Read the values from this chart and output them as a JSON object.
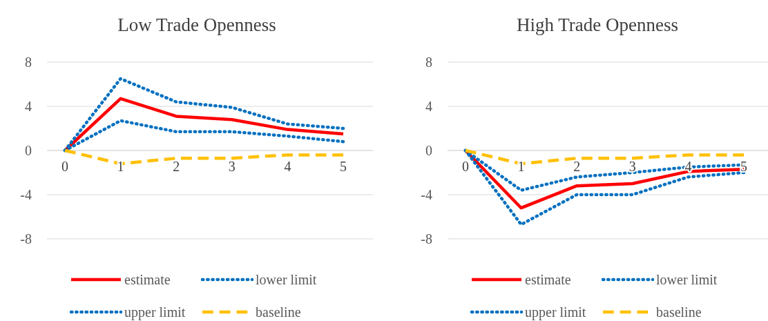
{
  "chart_data": [
    {
      "type": "line",
      "title": "Low Trade Openness",
      "categories": [
        "0",
        "1",
        "2",
        "3",
        "4",
        "5"
      ],
      "ylim": [
        -8,
        8
      ],
      "yticks": [
        -8,
        -4,
        0,
        4,
        8
      ],
      "grid": "y",
      "legend": "bottom",
      "marker": "none",
      "series": [
        {
          "name": "estimate",
          "color": "#ff0000",
          "line_style": "solid",
          "values": [
            0,
            4.7,
            3.1,
            2.8,
            1.9,
            1.5
          ]
        },
        {
          "name": "lower limit",
          "color": "#0070c0",
          "line_style": "dotted",
          "values": [
            0,
            2.7,
            1.7,
            1.7,
            1.3,
            0.8
          ]
        },
        {
          "name": "upper limit",
          "color": "#0070c0",
          "line_style": "dotted",
          "values": [
            0,
            6.5,
            4.4,
            3.9,
            2.4,
            2.0
          ]
        },
        {
          "name": "baseline",
          "color": "#ffc000",
          "line_style": "dashed",
          "values": [
            0,
            -1.2,
            -0.7,
            -0.7,
            -0.4,
            -0.4
          ]
        }
      ]
    },
    {
      "type": "line",
      "title": "High Trade Openness",
      "categories": [
        "0",
        "1",
        "2",
        "3",
        "4",
        "5"
      ],
      "ylim": [
        -8,
        8
      ],
      "yticks": [
        -8,
        -4,
        0,
        4,
        8
      ],
      "grid": "y",
      "legend": "bottom",
      "marker": "none",
      "series": [
        {
          "name": "estimate",
          "color": "#ff0000",
          "line_style": "solid",
          "values": [
            0,
            -5.2,
            -3.2,
            -3.0,
            -1.9,
            -1.7
          ]
        },
        {
          "name": "lower limit",
          "color": "#0070c0",
          "line_style": "dotted",
          "values": [
            0,
            -6.7,
            -4.0,
            -4.0,
            -2.4,
            -2.0
          ]
        },
        {
          "name": "upper limit",
          "color": "#0070c0",
          "line_style": "dotted",
          "values": [
            0,
            -3.6,
            -2.4,
            -2.0,
            -1.5,
            -1.3
          ]
        },
        {
          "name": "baseline",
          "color": "#ffc000",
          "line_style": "dashed",
          "values": [
            0,
            -1.2,
            -0.7,
            -0.7,
            -0.4,
            -0.4
          ]
        }
      ]
    }
  ]
}
